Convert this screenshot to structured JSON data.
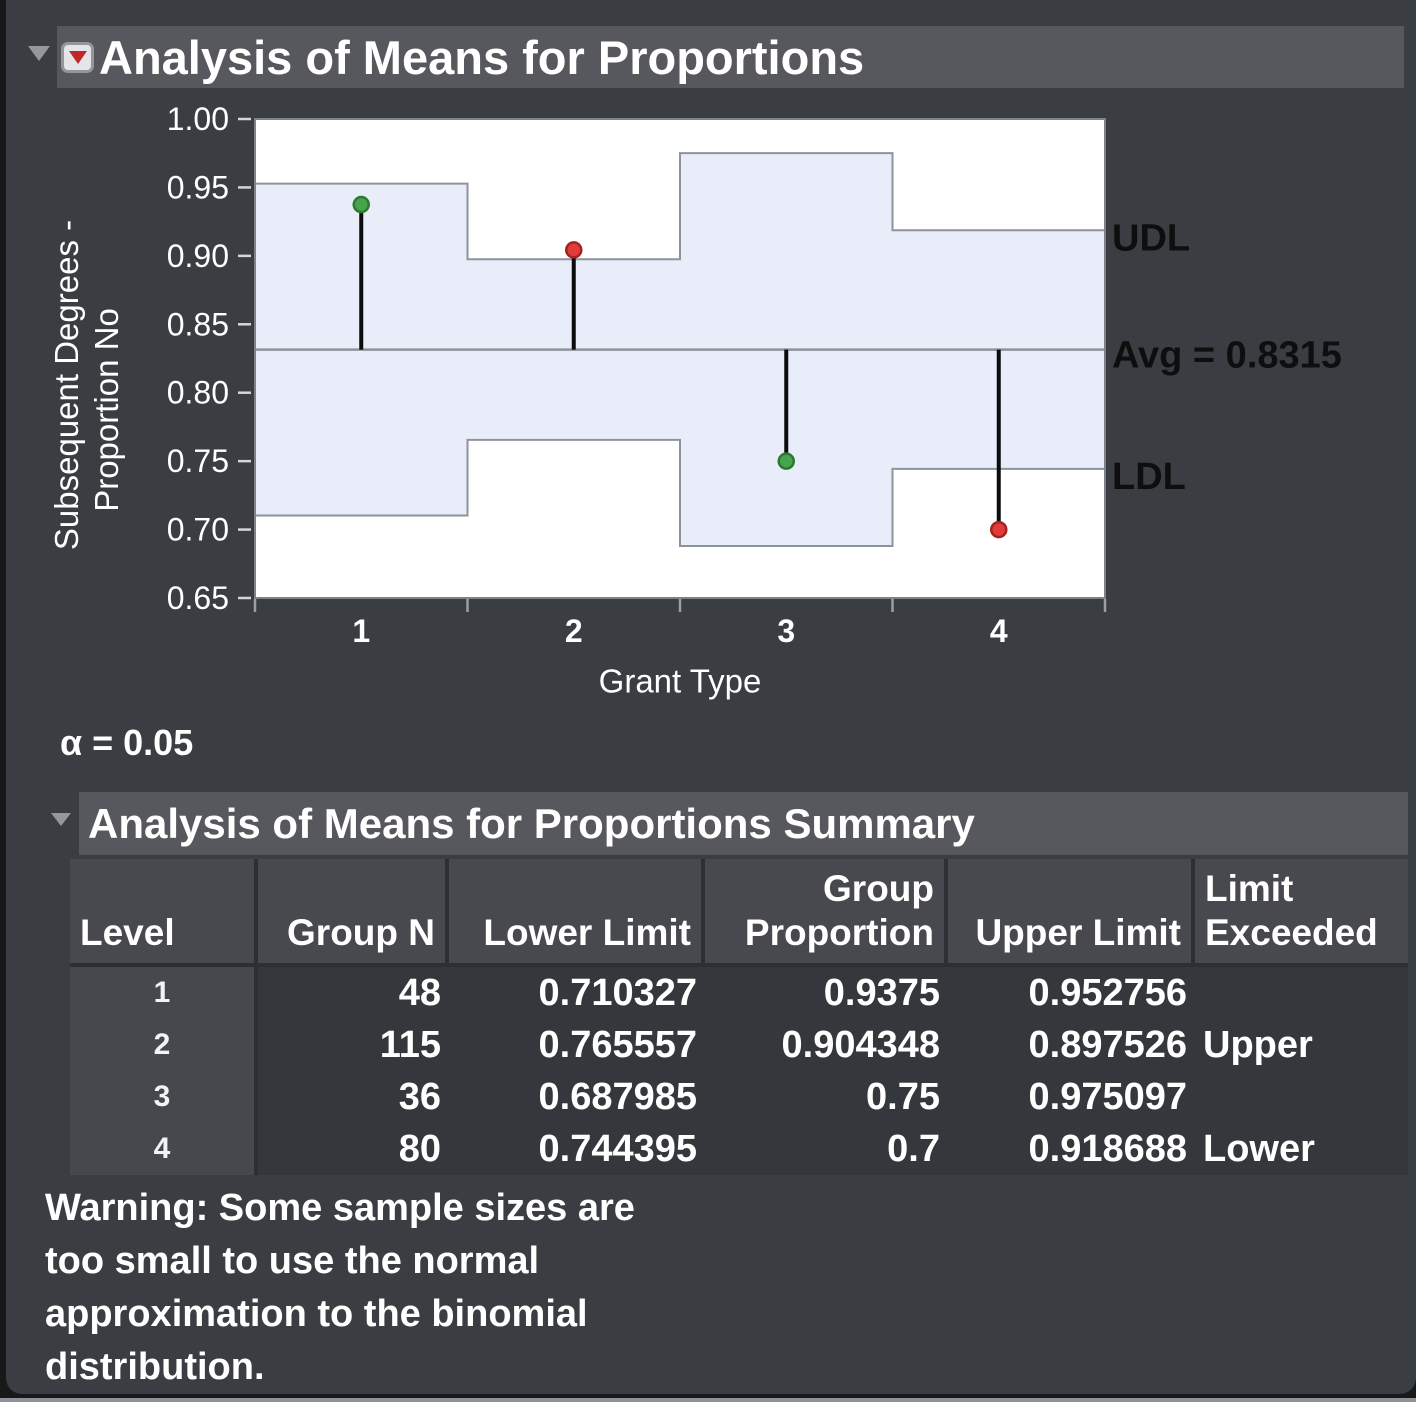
{
  "anom": {
    "title": "Analysis of Means for Proportions"
  },
  "chart_data": {
    "type": "scatter",
    "subtype": "analysis-of-means-for-proportions",
    "title": "Analysis of Means for Proportions",
    "xlabel": "Grant Type",
    "ylabel_lines": [
      "Subsequent Degrees -",
      "Proportion No"
    ],
    "ylim": [
      0.65,
      1.0
    ],
    "yticks": [
      {
        "value": 1.0,
        "label": "1.00"
      },
      {
        "value": 0.95,
        "label": "0.95"
      },
      {
        "value": 0.9,
        "label": "0.90"
      },
      {
        "value": 0.85,
        "label": "0.85"
      },
      {
        "value": 0.8,
        "label": "0.80"
      },
      {
        "value": 0.75,
        "label": "0.75"
      },
      {
        "value": 0.7,
        "label": "0.70"
      },
      {
        "value": 0.65,
        "label": "0.65"
      }
    ],
    "categories": [
      "1",
      "2",
      "3",
      "4"
    ],
    "avg": 0.8315,
    "labels": {
      "udl": "UDL",
      "avg": "Avg = 0.8315",
      "ldl": "LDL"
    },
    "alpha_label": "α = 0.05",
    "points": [
      {
        "group": "1",
        "proportion": 0.9375,
        "lower_limit": 0.710327,
        "upper_limit": 0.952756,
        "status": "within"
      },
      {
        "group": "2",
        "proportion": 0.904348,
        "lower_limit": 0.765557,
        "upper_limit": 0.897526,
        "status": "exceeds-upper"
      },
      {
        "group": "3",
        "proportion": 0.75,
        "lower_limit": 0.687985,
        "upper_limit": 0.975097,
        "status": "within"
      },
      {
        "group": "4",
        "proportion": 0.7,
        "lower_limit": 0.744395,
        "upper_limit": 0.918688,
        "status": "exceeds-lower"
      }
    ],
    "grid": false,
    "legend": "none",
    "colors": {
      "point_within": "#48a44c",
      "point_within_edge": "#2c7a30",
      "point_exceed": "#e13b3b",
      "point_exceed_edge": "#a32323",
      "band_fill": "#e8edf9",
      "band_edge": "#8e929b",
      "needle": "#0c0c0c",
      "plot_bg": "#ffffff",
      "frame": "#7f8288",
      "limit_label": "#0e0e0e",
      "axis_text": "#ffffff"
    }
  },
  "summary": {
    "title": "Analysis of Means for Proportions Summary",
    "table": {
      "columns": [
        "Level",
        "Group N",
        "Lower Limit",
        "Group\nProportion",
        "Upper Limit",
        "Limit\nExceeded"
      ],
      "rows": [
        [
          "1",
          "48",
          "0.710327",
          "0.9375",
          "0.952756",
          ""
        ],
        [
          "2",
          "115",
          "0.765557",
          "0.904348",
          "0.897526",
          "Upper"
        ],
        [
          "3",
          "36",
          "0.687985",
          "0.75",
          "0.975097",
          ""
        ],
        [
          "4",
          "80",
          "0.744395",
          "0.7",
          "0.918688",
          "Lower"
        ]
      ]
    },
    "warning_lines": [
      "Warning: Some sample sizes are",
      "too small to use the normal",
      "approximation to the binomial",
      "distribution."
    ]
  }
}
